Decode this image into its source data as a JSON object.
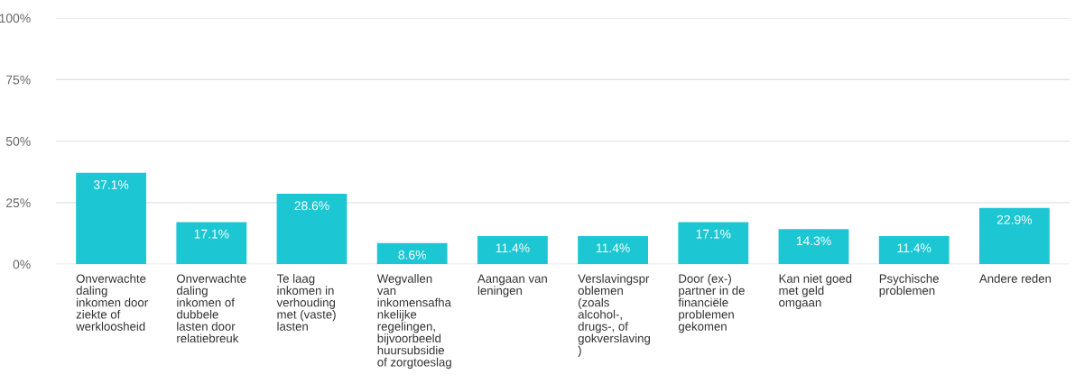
{
  "chart_data": {
    "type": "bar",
    "categories": [
      "Onverwachte\ndaling\ninkomen door\nziekte of\nwerkloosheid",
      "Onverwachte\ndaling\ninkomen of\ndubbele\nlasten door\nrelatiebreuk",
      "Te laag\ninkomen in\nverhouding\nmet (vaste)\nlasten",
      "Wegvallen\nvan\ninkomensafha\nnkelijke\nregelingen,\nbijvoorbeeld\nhuursubsidie\nof zorgtoeslag",
      "Aangaan van\nleningen",
      "Verslavingspr\noblemen\n(zoals\nalcohol-,\ndrugs-, of\ngokverslaving\n)",
      "Door (ex-)\npartner in de\nfinanciële\nproblemen\ngekomen",
      "Kan niet goed\nmet geld\nomgaan",
      "Psychische\nproblemen",
      "Andere reden"
    ],
    "values": [
      37.1,
      17.1,
      28.6,
      8.6,
      11.4,
      11.4,
      17.1,
      14.3,
      11.4,
      22.9
    ],
    "value_labels": [
      "37.1%",
      "17.1%",
      "28.6%",
      "8.6%",
      "11.4%",
      "11.4%",
      "17.1%",
      "14.3%",
      "11.4%",
      "22.9%"
    ],
    "color": "#1cc7d3",
    "ylim": [
      0,
      100
    ],
    "yticks": [
      {
        "value": 0,
        "label": "0%"
      },
      {
        "value": 25,
        "label": "25%"
      },
      {
        "value": 50,
        "label": "50%"
      },
      {
        "value": 75,
        "label": "75%"
      },
      {
        "value": 100,
        "label": "100%"
      }
    ],
    "grid": "y",
    "legend": false
  }
}
